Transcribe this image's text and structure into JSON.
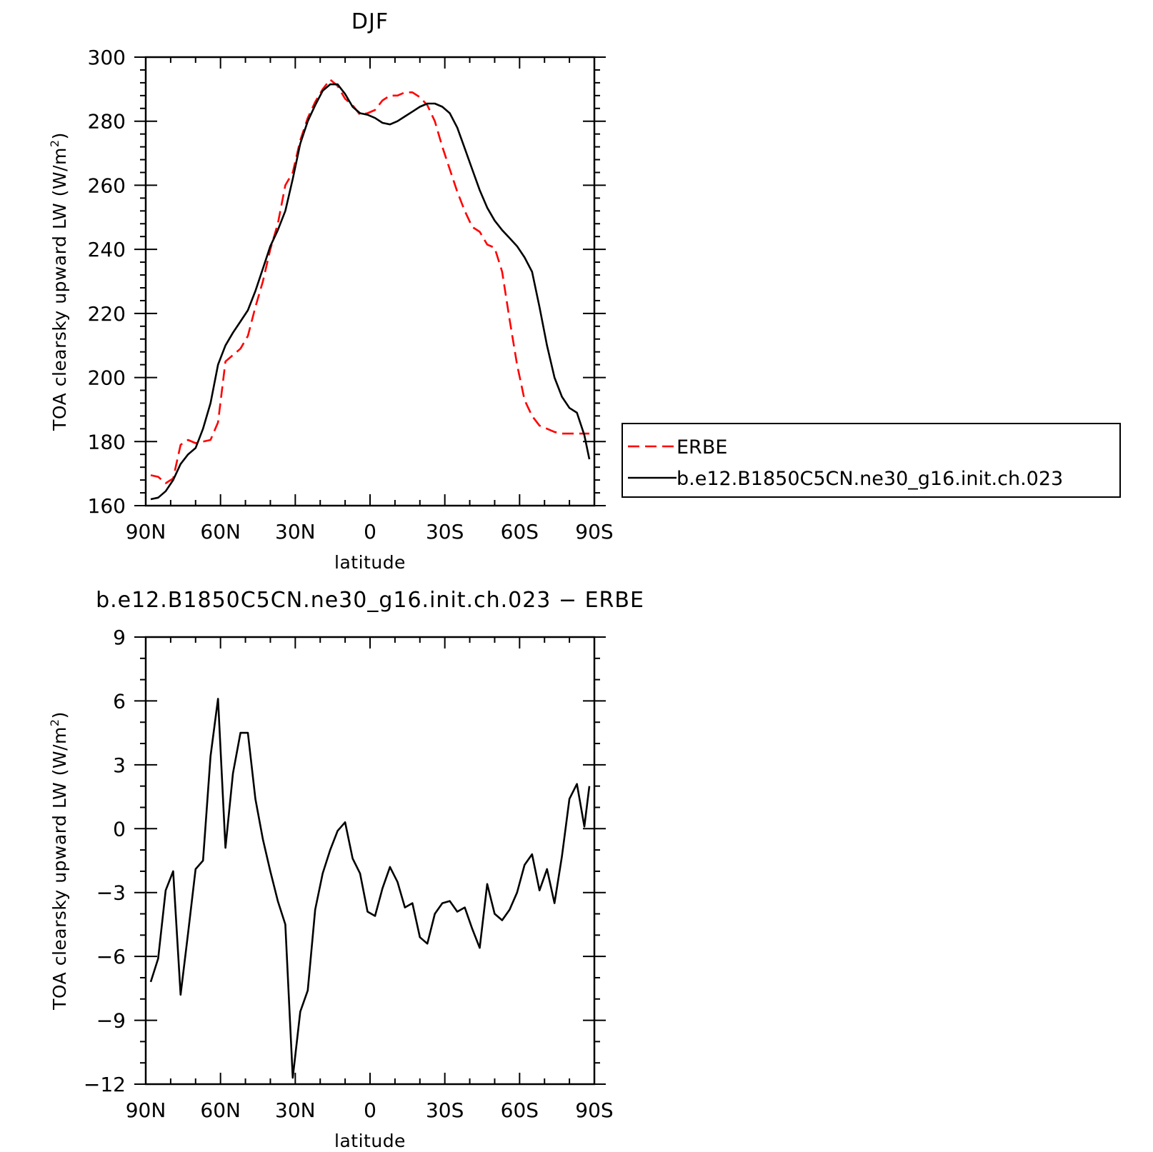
{
  "colors": {
    "obs": "#ff0000",
    "model": "#000000",
    "axis": "#000000",
    "background": "#ffffff"
  },
  "chart_data": [
    {
      "type": "line",
      "title": "DJF",
      "xlabel": "latitude",
      "ylabel": "TOA clearsky upward LW (W/m",
      "ylabel_sup": "2",
      "ylabel_close": ")",
      "xlim": [
        90,
        -90
      ],
      "ylim": [
        160,
        300
      ],
      "xtick_values": [
        90,
        60,
        30,
        0,
        -30,
        -60,
        -90
      ],
      "xtick_labels": [
        "90N",
        "60N",
        "30N",
        "0",
        "30S",
        "60S",
        "90S"
      ],
      "ytick_values": [
        160,
        180,
        200,
        220,
        240,
        260,
        280,
        300
      ],
      "ytick_labels": [
        "160",
        "180",
        "200",
        "220",
        "240",
        "260",
        "280",
        "300"
      ],
      "legend": {
        "placement": "right",
        "entries": [
          "ERBE",
          "b.e12.B1850C5CN.ne30_g16.init.ch.023"
        ]
      },
      "grid": false,
      "series": [
        {
          "name": "ERBE",
          "style": "dashed",
          "color": "#ff0000",
          "x": [
            88,
            85,
            82,
            79,
            76,
            73,
            70,
            67,
            64,
            61,
            58,
            55,
            52,
            49,
            46,
            43,
            40,
            37,
            34,
            31,
            28,
            25,
            22,
            19,
            16,
            13,
            10,
            7,
            4,
            1,
            -2,
            -5,
            -8,
            -11,
            -14,
            -17,
            -20,
            -23,
            -26,
            -29,
            -32,
            -35,
            -38,
            -41,
            -44,
            -47,
            -50,
            -53,
            -56,
            -59,
            -62,
            -65,
            -68,
            -71,
            -74,
            -77,
            -80,
            -83,
            -86,
            -88
          ],
          "y": [
            169.5,
            169,
            167,
            168.5,
            179,
            180.5,
            179.5,
            180,
            180.5,
            186,
            205,
            207,
            209,
            213,
            222,
            230,
            240,
            248,
            260,
            264,
            274,
            281,
            286,
            290,
            293,
            291,
            287,
            285,
            282,
            282.5,
            283.5,
            286.5,
            288,
            288,
            289,
            289,
            287.5,
            285,
            280,
            272,
            265,
            258,
            252,
            247,
            245.5,
            241.5,
            240.5,
            233,
            218,
            204,
            193,
            188,
            185,
            184,
            183,
            182.5,
            182.5,
            182.5,
            182.5,
            182.5
          ]
        },
        {
          "name": "b.e12.B1850C5CN.ne30_g16.init.ch.023",
          "style": "solid",
          "color": "#000000",
          "x": [
            88,
            85,
            82,
            79,
            76,
            73,
            70,
            67,
            64,
            61,
            58,
            55,
            52,
            49,
            46,
            43,
            40,
            37,
            34,
            31,
            28,
            25,
            22,
            19,
            16,
            13,
            10,
            7,
            4,
            1,
            -2,
            -5,
            -8,
            -11,
            -14,
            -17,
            -20,
            -23,
            -26,
            -29,
            -32,
            -35,
            -38,
            -41,
            -44,
            -47,
            -50,
            -53,
            -56,
            -59,
            -62,
            -65,
            -68,
            -71,
            -74,
            -77,
            -80,
            -83,
            -86,
            -88
          ],
          "y": [
            162,
            162.5,
            164.5,
            168,
            173,
            176,
            178,
            184,
            192,
            204,
            210,
            214,
            217.5,
            221,
            227,
            234,
            241,
            246,
            252,
            262,
            273,
            280,
            285,
            289.5,
            291.5,
            291.5,
            288.5,
            284.5,
            282.5,
            282,
            281,
            279.5,
            279,
            280,
            281.5,
            283,
            284.5,
            285.5,
            285.5,
            284.5,
            282.5,
            278,
            271.5,
            265,
            258.5,
            253,
            249,
            246,
            243.5,
            241,
            237.5,
            233,
            222,
            210,
            200,
            194,
            190.5,
            189,
            182,
            174.5
          ]
        }
      ]
    },
    {
      "type": "line",
      "title": "b.e12.B1850C5CN.ne30_g16.init.ch.023 − ERBE",
      "xlabel": "latitude",
      "ylabel": "TOA clearsky upward LW (W/m",
      "ylabel_sup": "2",
      "ylabel_close": ")",
      "xlim": [
        90,
        -90
      ],
      "ylim": [
        -12,
        9
      ],
      "xtick_values": [
        90,
        60,
        30,
        0,
        -30,
        -60,
        -90
      ],
      "xtick_labels": [
        "90N",
        "60N",
        "30N",
        "0",
        "30S",
        "60S",
        "90S"
      ],
      "ytick_values": [
        -12,
        -9,
        -6,
        -3,
        0,
        3,
        6,
        9
      ],
      "ytick_labels": [
        "−12",
        "−9",
        "−6",
        "−3",
        "0",
        "3",
        "6",
        "9"
      ],
      "grid": false,
      "series": [
        {
          "style": "solid",
          "color": "#000000",
          "x": [
            88,
            85,
            82,
            79,
            76,
            73,
            70,
            67,
            64,
            61,
            58,
            55,
            52,
            49,
            46,
            43,
            40,
            37,
            34,
            31,
            28,
            25,
            22,
            19,
            16,
            13,
            10,
            7,
            4,
            1,
            -2,
            -5,
            -8,
            -11,
            -14,
            -17,
            -20,
            -23,
            -26,
            -29,
            -32,
            -35,
            -38,
            -41,
            -44,
            -47,
            -50,
            -53,
            -56,
            -59,
            -62,
            -65,
            -68,
            -71,
            -74,
            -77,
            -80,
            -83,
            -86,
            -88
          ],
          "y": [
            -7.2,
            -6.1,
            -2.9,
            -2,
            -7.8,
            -4.9,
            -1.9,
            -1.5,
            3.4,
            6.1,
            -0.9,
            2.6,
            4.5,
            4.5,
            1.4,
            -0.5,
            -2,
            -3.4,
            -4.5,
            -11.7,
            -8.6,
            -7.6,
            -3.8,
            -2.1,
            -1,
            -0.1,
            0.3,
            -1.4,
            -2.1,
            -3.9,
            -4.1,
            -2.8,
            -1.8,
            -2.5,
            -3.7,
            -3.5,
            -5.1,
            -5.4,
            -4,
            -3.5,
            -3.4,
            -3.9,
            -3.7,
            -4.7,
            -5.6,
            -2.6,
            -4,
            -4.3,
            -3.8,
            -3,
            -1.7,
            -1.2,
            -2.9,
            -1.9,
            -3.5,
            -1.3,
            1.4,
            2.1,
            0.1,
            2
          ]
        }
      ]
    }
  ]
}
